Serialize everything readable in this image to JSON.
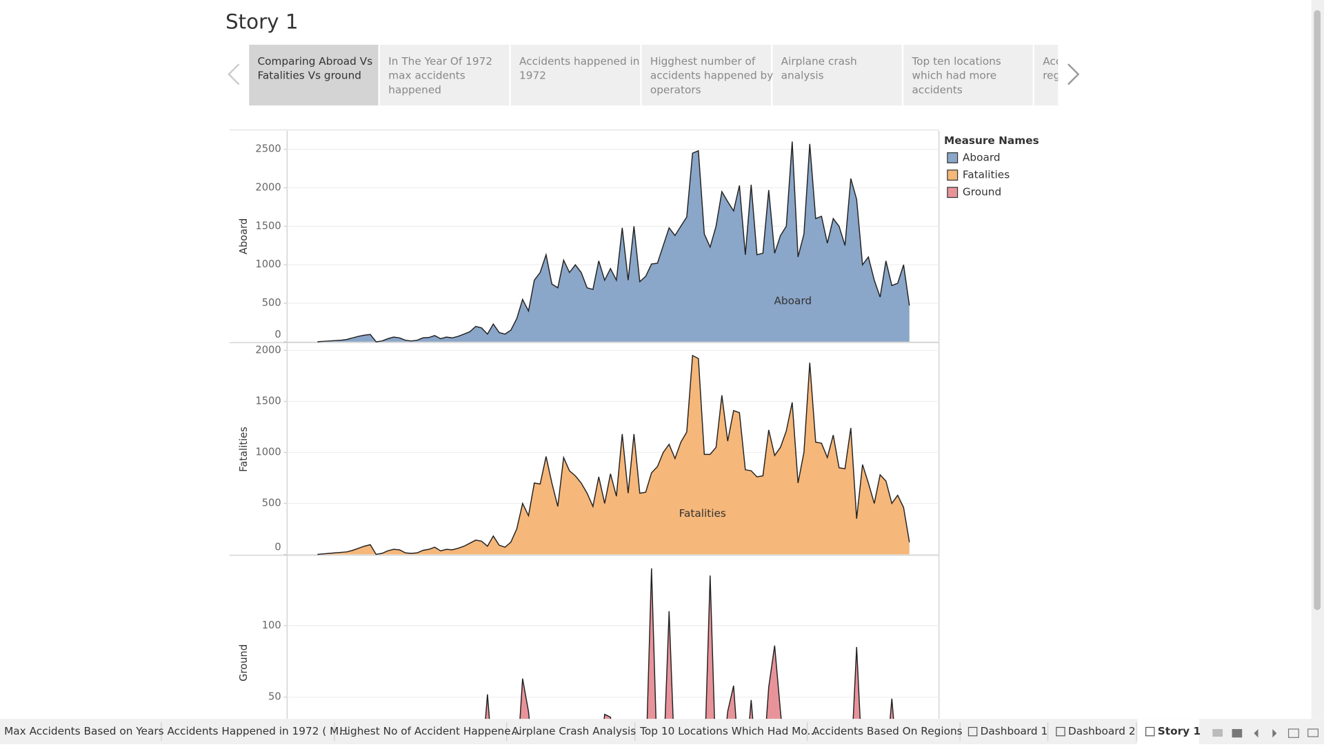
{
  "story": {
    "title": "Story 1",
    "points": [
      {
        "lines": [
          "Comparing Abroad Vs",
          "Fatalities Vs ground"
        ]
      },
      {
        "lines": [
          "In The Year Of 1972",
          "max accidents",
          "happened"
        ]
      },
      {
        "lines": [
          "Accidents happened in",
          "1972"
        ]
      },
      {
        "lines": [
          "Higghest number of",
          "accidents happened by",
          "operators"
        ]
      },
      {
        "lines": [
          "Airplane crash",
          "analysis"
        ]
      },
      {
        "lines": [
          "Top ten locations",
          "which had more",
          "accidents"
        ]
      },
      {
        "lines": [
          "Acc",
          "reg"
        ]
      }
    ]
  },
  "legend": {
    "title": "Measure Names",
    "items": [
      {
        "name": "Aboard",
        "color": "#8aa6c8"
      },
      {
        "name": "Fatalities",
        "color": "#f5b77a"
      },
      {
        "name": "Ground",
        "color": "#e8939a"
      }
    ]
  },
  "chart_data": [
    {
      "type": "area",
      "ylabel": "Aboard",
      "ylim": [
        0,
        2740
      ],
      "yticks": [
        0,
        500,
        1000,
        1500,
        2000,
        2500
      ],
      "grid": true,
      "series": [
        {
          "name": "Aboard",
          "color": "#8aa6c8",
          "values": [
            0,
            5,
            10,
            15,
            20,
            30,
            50,
            70,
            85,
            95,
            0,
            10,
            40,
            60,
            50,
            20,
            10,
            20,
            50,
            55,
            80,
            40,
            60,
            50,
            70,
            100,
            130,
            200,
            180,
            100,
            230,
            120,
            100,
            150,
            300,
            550,
            400,
            800,
            900,
            1130,
            750,
            700,
            1060,
            900,
            1000,
            900,
            700,
            680,
            1050,
            800,
            950,
            800,
            1480,
            800,
            1500,
            780,
            850,
            1010,
            1020,
            1250,
            1480,
            1380,
            1500,
            1620,
            2450,
            2480,
            1400,
            1230,
            1500,
            1950,
            1820,
            1700,
            2030,
            1130,
            2040,
            1130,
            1150,
            1970,
            1150,
            1380,
            1500,
            2600,
            1100,
            1400,
            2570,
            1600,
            1630,
            1280,
            1600,
            1500,
            1250,
            2120,
            1850,
            1000,
            1100,
            800,
            580,
            1050,
            730,
            760,
            1000,
            470
          ]
        }
      ]
    },
    {
      "type": "area",
      "ylabel": "Fatalities",
      "ylim": [
        0,
        2060
      ],
      "yticks": [
        0,
        500,
        1000,
        1500,
        2000
      ],
      "grid": true,
      "series": [
        {
          "name": "Fatalities",
          "color": "#f5b77a",
          "values": [
            0,
            5,
            10,
            15,
            20,
            25,
            40,
            60,
            80,
            95,
            0,
            10,
            35,
            50,
            45,
            15,
            10,
            15,
            40,
            50,
            70,
            35,
            50,
            45,
            60,
            80,
            110,
            140,
            130,
            80,
            180,
            90,
            70,
            120,
            250,
            500,
            380,
            700,
            690,
            960,
            700,
            470,
            950,
            820,
            770,
            700,
            600,
            470,
            760,
            500,
            790,
            570,
            1180,
            600,
            1180,
            600,
            610,
            800,
            860,
            1000,
            1080,
            940,
            1100,
            1200,
            1950,
            1920,
            980,
            980,
            1050,
            1560,
            1110,
            1410,
            1390,
            830,
            820,
            760,
            770,
            1220,
            970,
            1050,
            1210,
            1490,
            700,
            1000,
            1880,
            1100,
            1090,
            950,
            1170,
            850,
            840,
            1240,
            350,
            880,
            700,
            500,
            780,
            720,
            500,
            580,
            460,
            120
          ]
        }
      ]
    },
    {
      "type": "area",
      "ylabel": "Ground",
      "ylim": [
        0,
        148
      ],
      "yticks": [
        50,
        100
      ],
      "grid": true,
      "series": [
        {
          "name": "Ground",
          "color": "#e8939a",
          "values": [
            0,
            0,
            0,
            0,
            0,
            0,
            0,
            0,
            0,
            0,
            0,
            0,
            0,
            0,
            0,
            0,
            0,
            0,
            0,
            0,
            0,
            0,
            0,
            0,
            0,
            0,
            0,
            0,
            0,
            52,
            0,
            0,
            0,
            0,
            0,
            63,
            40,
            0,
            0,
            0,
            0,
            0,
            0,
            0,
            0,
            0,
            0,
            0,
            0,
            38,
            36,
            0,
            0,
            0,
            0,
            0,
            0,
            140,
            0,
            0,
            110,
            0,
            0,
            0,
            0,
            0,
            0,
            135,
            0,
            0,
            40,
            58,
            0,
            0,
            48,
            0,
            0,
            57,
            86,
            40,
            0,
            0,
            0,
            0,
            0,
            0,
            0,
            0,
            0,
            0,
            0,
            0,
            85,
            0,
            0,
            0,
            0,
            0,
            49,
            0,
            0,
            0
          ]
        }
      ]
    }
  ],
  "tabs": [
    "Max Accidents Based on Years",
    "Accidents Happened in 1972 ( M...",
    "Highest No of Accident Happene...",
    "Airplane Crash Analysis",
    "Top 10 Locations Which Had Mo...",
    "Accidents Based On Regions",
    "Dashboard 1",
    "Dashboard 2",
    "Story 1"
  ]
}
